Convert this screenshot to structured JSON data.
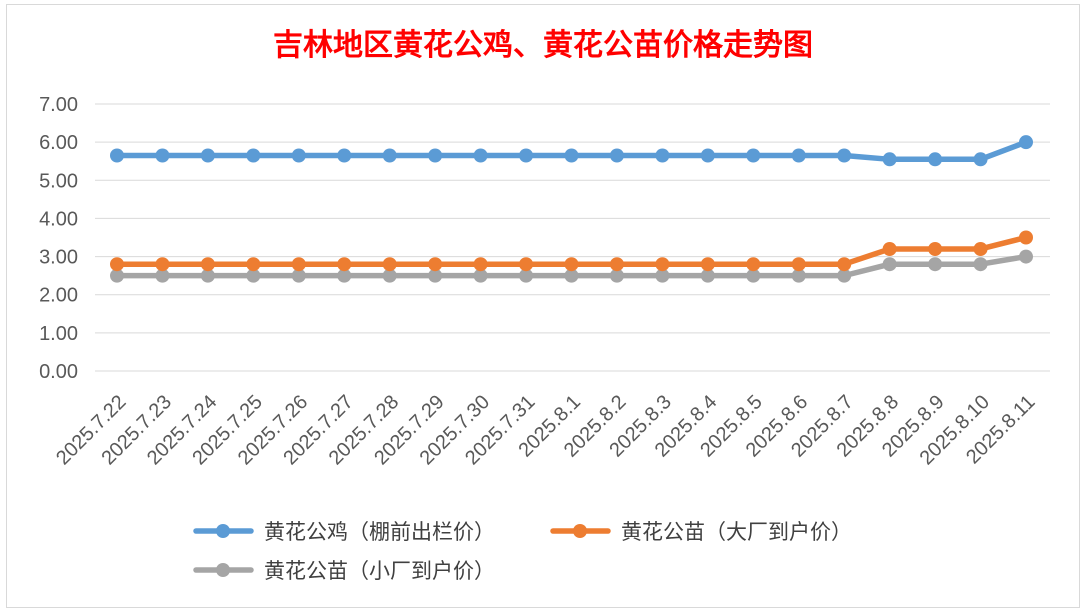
{
  "chart_data": {
    "type": "line",
    "title": "吉林地区黄花公鸡、黄花公苗价格走势图",
    "categories": [
      "2025.7.22",
      "2025.7.23",
      "2025.7.24",
      "2025.7.25",
      "2025.7.26",
      "2025.7.27",
      "2025.7.28",
      "2025.7.29",
      "2025.7.30",
      "2025.7.31",
      "2025.8.1",
      "2025.8.2",
      "2025.8.3",
      "2025.8.4",
      "2025.8.5",
      "2025.8.6",
      "2025.8.7",
      "2025.8.8",
      "2025.8.9",
      "2025.8.10",
      "2025.8.11"
    ],
    "series": [
      {
        "name": "黄花公鸡（棚前出栏价）",
        "color": "#5b9bd5",
        "values": [
          5.65,
          5.65,
          5.65,
          5.65,
          5.65,
          5.65,
          5.65,
          5.65,
          5.65,
          5.65,
          5.65,
          5.65,
          5.65,
          5.65,
          5.65,
          5.65,
          5.65,
          5.55,
          5.55,
          5.55,
          6.0
        ]
      },
      {
        "name": "黄花公苗（大厂到户价）",
        "color": "#ed7d31",
        "values": [
          2.8,
          2.8,
          2.8,
          2.8,
          2.8,
          2.8,
          2.8,
          2.8,
          2.8,
          2.8,
          2.8,
          2.8,
          2.8,
          2.8,
          2.8,
          2.8,
          2.8,
          3.2,
          3.2,
          3.2,
          3.5
        ]
      },
      {
        "name": "黄花公苗（小厂到户价）",
        "color": "#a5a5a5",
        "values": [
          2.5,
          2.5,
          2.5,
          2.5,
          2.5,
          2.5,
          2.5,
          2.5,
          2.5,
          2.5,
          2.5,
          2.5,
          2.5,
          2.5,
          2.5,
          2.5,
          2.5,
          2.8,
          2.8,
          2.8,
          3.0
        ]
      }
    ],
    "yticks": [
      "0.00",
      "1.00",
      "2.00",
      "3.00",
      "4.00",
      "5.00",
      "6.00",
      "7.00"
    ],
    "ylim": [
      0,
      7
    ],
    "grid": true,
    "legend_position": "bottom"
  }
}
